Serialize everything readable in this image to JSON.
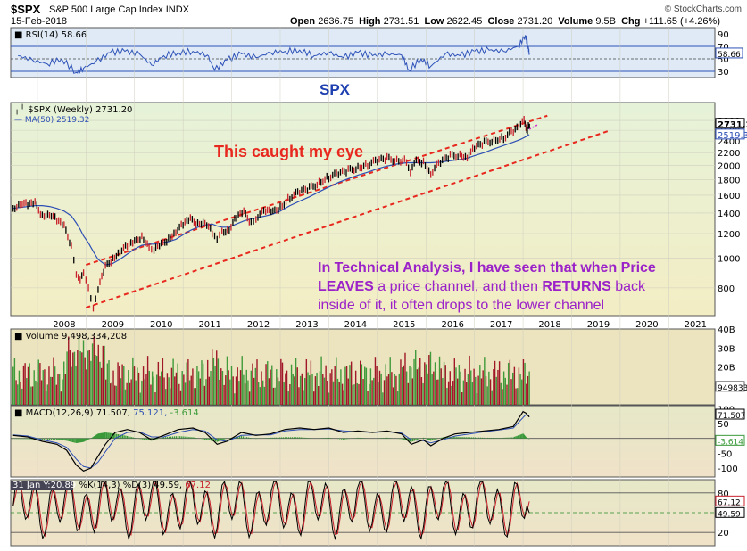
{
  "header": {
    "ticker": "$SPX",
    "description": "S&P 500 Large Cap Index",
    "exchange": "INDX",
    "date": "15-Feb-2018",
    "open_label": "Open",
    "open": "2636.75",
    "high_label": "High",
    "high": "2731.51",
    "low_label": "Low",
    "low": "2622.45",
    "close_label": "Close",
    "close": "2731.20",
    "volume_label": "Volume",
    "volume": "9.5B",
    "chg_label": "Chg",
    "chg": "+111.65 (+4.26%)",
    "credit": "© StockCharts.com"
  },
  "annotations": {
    "spx": "SPX",
    "caught": "This caught my eye",
    "ta_line1_a": "In Technical Analysis,  I have seen that when Price",
    "ta_line2_a": "LEAVES",
    "ta_line2_b": " a price channel, and then ",
    "ta_line2_c": "RETURNS",
    "ta_line2_d": " back",
    "ta_line3": "inside of it, it often drops to the lower channel"
  },
  "colors": {
    "price_bg": "#f3edc4",
    "price_bg_top": "#e6f2d8",
    "volume_bg": "#ece3bf",
    "rsi_bg": "#dfeaf6",
    "lower_bg": "#f0e2c8",
    "price_line": "#000000",
    "bar_down": "#c8202a",
    "bar_up": "#2a8c2a",
    "ma_line": "#2d4fb5",
    "channel": "#e8281e",
    "rsi_line": "#2e52b8",
    "macd_hist": "#3a9a3a",
    "stoch_k": "#000000",
    "stoch_d": "#c8202a"
  },
  "chart_data": [
    {
      "id": "rsi",
      "type": "line",
      "title": "RSI(14) 58.66",
      "last": "58.66",
      "ylim": [
        20,
        100
      ],
      "yticks": [
        90,
        70,
        50,
        30
      ],
      "levels": [
        70,
        30
      ],
      "x": [
        2007.6,
        2007.9,
        2008.2,
        2008.5,
        2008.8,
        2008.95,
        2009.2,
        2009.5,
        2009.8,
        2010.1,
        2010.35,
        2010.6,
        2010.9,
        2011.2,
        2011.5,
        2011.65,
        2011.9,
        2012.2,
        2012.5,
        2012.8,
        2013.1,
        2013.4,
        2013.7,
        2014.0,
        2014.3,
        2014.6,
        2014.9,
        2015.2,
        2015.5,
        2015.65,
        2015.9,
        2016.1,
        2016.4,
        2016.7,
        2017.0,
        2017.3,
        2017.6,
        2017.9,
        2018.05,
        2018.1,
        2018.13
      ],
      "values": [
        55,
        48,
        42,
        50,
        28,
        35,
        45,
        60,
        62,
        58,
        40,
        55,
        60,
        62,
        56,
        32,
        48,
        58,
        52,
        60,
        62,
        64,
        55,
        60,
        52,
        60,
        55,
        58,
        56,
        32,
        50,
        38,
        58,
        55,
        62,
        64,
        62,
        70,
        88,
        70,
        58.66
      ]
    },
    {
      "id": "price",
      "type": "line",
      "title": "$SPX (Weekly) 2731.20",
      "ma_label": "MA(50) 2519.32",
      "last": "2731.2",
      "ma_last": "2519.3",
      "log_scale": true,
      "ylim": [
        650,
        3200
      ],
      "yticks": [
        800,
        1000,
        1200,
        1400,
        1600,
        1800,
        2000,
        2200,
        2400,
        2600,
        2800
      ],
      "xticks": [
        "2008",
        "2009",
        "2010",
        "2011",
        "2012",
        "2013",
        "2014",
        "2015",
        "2016",
        "2017",
        "2018",
        "2019",
        "2020",
        "2021"
      ],
      "x": [
        2007.5,
        2007.65,
        2007.8,
        2007.95,
        2008.1,
        2008.25,
        2008.4,
        2008.55,
        2008.7,
        2008.8,
        2008.88,
        2008.95,
        2009.05,
        2009.15,
        2009.25,
        2009.4,
        2009.55,
        2009.7,
        2009.85,
        2010.0,
        2010.15,
        2010.3,
        2010.4,
        2010.55,
        2010.7,
        2010.85,
        2011.0,
        2011.15,
        2011.3,
        2011.45,
        2011.6,
        2011.7,
        2011.8,
        2011.95,
        2012.1,
        2012.25,
        2012.4,
        2012.5,
        2012.7,
        2012.85,
        2013.0,
        2013.2,
        2013.4,
        2013.6,
        2013.8,
        2014.0,
        2014.2,
        2014.4,
        2014.6,
        2014.8,
        2015.0,
        2015.2,
        2015.4,
        2015.6,
        2015.68,
        2015.8,
        2015.95,
        2016.1,
        2016.3,
        2016.5,
        2016.7,
        2016.85,
        2017.0,
        2017.2,
        2017.4,
        2017.6,
        2017.8,
        2017.95,
        2018.02,
        2018.06,
        2018.09,
        2018.13
      ],
      "values": [
        1450,
        1520,
        1480,
        1500,
        1380,
        1400,
        1320,
        1260,
        1100,
        900,
        850,
        880,
        800,
        700,
        790,
        930,
        1000,
        1060,
        1090,
        1120,
        1180,
        1100,
        1060,
        1100,
        1160,
        1230,
        1280,
        1330,
        1300,
        1320,
        1200,
        1130,
        1220,
        1250,
        1350,
        1400,
        1310,
        1360,
        1420,
        1400,
        1470,
        1580,
        1630,
        1680,
        1770,
        1840,
        1870,
        1920,
        1980,
        2020,
        2060,
        2100,
        2090,
        2080,
        1900,
        2050,
        2060,
        1900,
        2040,
        2140,
        2170,
        2150,
        2270,
        2360,
        2430,
        2470,
        2570,
        2670,
        2810,
        2700,
        2600,
        2731.2
      ],
      "ma": [
        1450,
        1460,
        1470,
        1480,
        1480,
        1470,
        1450,
        1420,
        1370,
        1300,
        1240,
        1180,
        1120,
        1050,
        990,
        950,
        960,
        990,
        1030,
        1070,
        1100,
        1110,
        1110,
        1120,
        1130,
        1150,
        1190,
        1230,
        1260,
        1280,
        1290,
        1270,
        1260,
        1260,
        1290,
        1320,
        1340,
        1350,
        1370,
        1390,
        1420,
        1480,
        1530,
        1580,
        1640,
        1700,
        1760,
        1810,
        1860,
        1900,
        1950,
        1990,
        2020,
        2040,
        2040,
        2040,
        2040,
        2040,
        2050,
        2070,
        2090,
        2110,
        2150,
        2200,
        2260,
        2320,
        2380,
        2430,
        2460,
        2480,
        2500,
        2519.32
      ],
      "channel_upper": [
        [
          2009.0,
          950
        ],
        [
          2018.5,
          2900
        ]
      ],
      "channel_lower": [
        [
          2009.0,
          690
        ],
        [
          2019.8,
          2600
        ]
      ]
    },
    {
      "id": "volume",
      "type": "bar",
      "title": "Volume 9,498,334,208",
      "last": "9498334208",
      "ylim": [
        0,
        40
      ],
      "yticks": [
        40,
        30,
        20,
        10
      ],
      "unit": "B"
    },
    {
      "id": "macd",
      "type": "line",
      "title": "MACD(12,26,9) 71.507, 75.121, -3.614",
      "macd_label": "MACD(12,26,9)",
      "macd_val": "71.507",
      "signal_val": "75.121",
      "hist_val": "-3.614",
      "last_macd": "71.507",
      "last_hist": "-3.614",
      "ylim": [
        -130,
        110
      ],
      "yticks": [
        100,
        50,
        0,
        -50,
        -100
      ],
      "x": [
        2007.5,
        2007.8,
        2008.1,
        2008.4,
        2008.6,
        2008.8,
        2008.95,
        2009.1,
        2009.25,
        2009.4,
        2009.6,
        2009.85,
        2010.1,
        2010.35,
        2010.6,
        2010.9,
        2011.2,
        2011.45,
        2011.7,
        2011.9,
        2012.2,
        2012.5,
        2012.8,
        2013.1,
        2013.4,
        2013.7,
        2014.0,
        2014.3,
        2014.6,
        2014.9,
        2015.2,
        2015.5,
        2015.7,
        2015.95,
        2016.1,
        2016.35,
        2016.6,
        2016.9,
        2017.2,
        2017.5,
        2017.8,
        2018.0,
        2018.06,
        2018.13
      ],
      "values": [
        10,
        5,
        -10,
        -20,
        -40,
        -90,
        -110,
        -100,
        -60,
        -20,
        20,
        30,
        20,
        -5,
        10,
        30,
        35,
        20,
        -20,
        -10,
        20,
        10,
        15,
        30,
        35,
        30,
        35,
        20,
        25,
        20,
        25,
        15,
        -20,
        -5,
        -25,
        0,
        15,
        20,
        25,
        30,
        40,
        90,
        85,
        71.5
      ],
      "signal": [
        12,
        8,
        -5,
        -15,
        -30,
        -70,
        -95,
        -100,
        -80,
        -45,
        0,
        20,
        22,
        5,
        5,
        20,
        30,
        25,
        -5,
        -10,
        10,
        12,
        12,
        25,
        30,
        30,
        32,
        25,
        22,
        20,
        22,
        18,
        -5,
        -8,
        -15,
        -5,
        8,
        15,
        22,
        28,
        35,
        70,
        80,
        75.1
      ]
    },
    {
      "id": "stoch",
      "type": "line",
      "title": "31 Jan Y:20.89 %K(14,3) %D(3) 49.59, 67.12",
      "hover_label": "31 Jan Y:20.89",
      "stoch_label": "%K(14,3) %D(3)",
      "k_val": "49.59",
      "d_val": "67.12",
      "last_k": "49.59",
      "last_d": "67.12",
      "ylim": [
        0,
        100
      ],
      "yticks": [
        80,
        50,
        20
      ],
      "levels": [
        80,
        20
      ]
    }
  ]
}
